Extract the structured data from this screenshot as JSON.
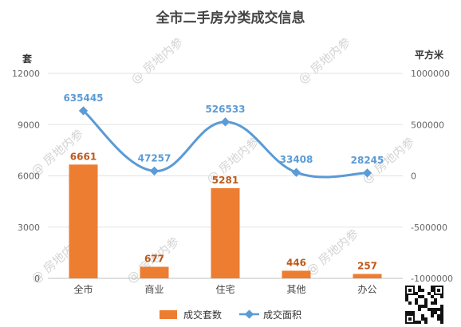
{
  "chart_data": {
    "type": "bar+line",
    "title": "全市二手房分类成交信息",
    "categories": [
      "全市",
      "商业",
      "住宅",
      "其他",
      "办公"
    ],
    "series": [
      {
        "name": "成交套数",
        "type": "bar",
        "axis": "left",
        "color": "#ed7d31",
        "values": [
          6661,
          677,
          5281,
          446,
          257
        ]
      },
      {
        "name": "成交面积",
        "type": "line",
        "axis": "right",
        "color": "#5b9bd5",
        "values": [
          635445,
          47257,
          526533,
          33408,
          28245
        ]
      }
    ],
    "y_left": {
      "label": "套",
      "min": 0,
      "max": 12000,
      "ticks": [
        0,
        3000,
        6000,
        9000,
        12000
      ]
    },
    "y_right": {
      "label": "平方米",
      "min": -1000000,
      "max": 1000000,
      "ticks": [
        -1000000,
        -500000,
        0,
        500000,
        1000000
      ]
    },
    "legend_position": "bottom",
    "grid": true
  },
  "watermark": "@ 房地内参"
}
